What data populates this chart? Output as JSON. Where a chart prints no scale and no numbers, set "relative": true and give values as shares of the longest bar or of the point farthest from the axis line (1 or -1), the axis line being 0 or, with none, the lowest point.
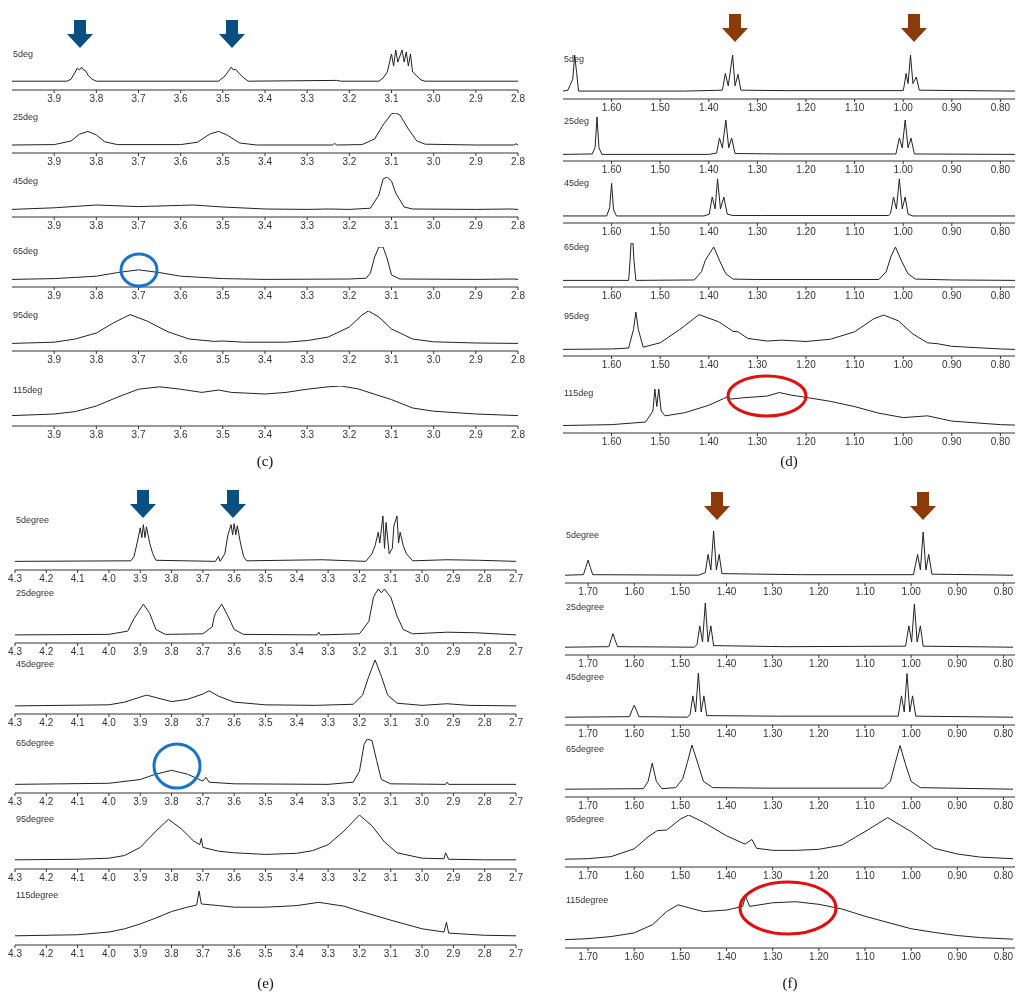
{
  "chart_data": [
    {
      "type": "line",
      "title": "5deg",
      "relative": true,
      "color": "#222222",
      "xlim": [
        4.0,
        2.8
      ],
      "xticks": [
        3.9,
        3.8,
        3.7,
        3.6,
        3.5,
        3.4,
        3.3,
        3.2,
        3.1,
        {
          "value": 3.0,
          "label": "3.0"
        },
        2.9,
        2.8
      ],
      "x": [
        4.0,
        3.87,
        3.86,
        3.85,
        3.845,
        3.84,
        3.835,
        3.83,
        3.825,
        3.82,
        3.81,
        3.8,
        3.51,
        3.495,
        3.485,
        3.48,
        3.475,
        3.47,
        3.46,
        3.45,
        3.44,
        3.23,
        3.22,
        3.13,
        3.12,
        3.11,
        3.1,
        3.095,
        3.09,
        3.085,
        3.075,
        3.07,
        3.065,
        3.06,
        3.055,
        3.05,
        3.04,
        3.03,
        3.02,
        2.8
      ],
      "values": [
        0.22,
        0.22,
        0.27,
        0.45,
        0.55,
        0.5,
        0.57,
        0.5,
        0.48,
        0.37,
        0.27,
        0.22,
        0.22,
        0.35,
        0.5,
        0.57,
        0.5,
        0.52,
        0.4,
        0.3,
        0.22,
        0.24,
        0.22,
        0.22,
        0.3,
        0.45,
        0.9,
        0.6,
        1.0,
        0.7,
        1.0,
        0.7,
        0.95,
        0.6,
        0.9,
        0.45,
        0.35,
        0.25,
        0.22,
        0.22
      ]
    },
    {
      "type": "line",
      "title": "25deg",
      "relative": true,
      "color": "#222222",
      "xlim": [
        4.0,
        2.8
      ],
      "xticks": [
        3.9,
        3.8,
        3.7,
        3.6,
        3.5,
        3.4,
        3.3,
        3.2,
        3.1,
        {
          "value": 3.0,
          "label": "3.0"
        },
        2.9,
        2.8
      ],
      "x": [
        4.0,
        3.9,
        3.86,
        3.84,
        3.82,
        3.8,
        3.78,
        3.75,
        3.6,
        3.56,
        3.53,
        3.51,
        3.49,
        3.46,
        3.42,
        3.24,
        3.235,
        3.23,
        3.17,
        3.14,
        3.12,
        3.1,
        3.09,
        3.08,
        3.06,
        3.04,
        3.02,
        2.9,
        2.81,
        2.805,
        2.8
      ],
      "values": [
        0.2,
        0.21,
        0.3,
        0.47,
        0.54,
        0.45,
        0.28,
        0.21,
        0.21,
        0.27,
        0.48,
        0.54,
        0.45,
        0.25,
        0.2,
        0.2,
        0.24,
        0.2,
        0.21,
        0.35,
        0.7,
        0.98,
        1.0,
        0.95,
        0.6,
        0.3,
        0.22,
        0.2,
        0.2,
        0.23,
        0.2
      ]
    },
    {
      "type": "line",
      "title": "45deg",
      "relative": true,
      "color": "#222222",
      "xlim": [
        4.0,
        2.8
      ],
      "xticks": [
        3.9,
        3.8,
        3.7,
        3.6,
        3.5,
        3.4,
        3.3,
        3.2,
        3.1,
        {
          "value": 3.0,
          "label": "3.0"
        },
        2.9,
        2.8
      ],
      "x": [
        4.0,
        3.9,
        3.8,
        3.7,
        3.6,
        3.57,
        3.5,
        3.4,
        3.3,
        3.25,
        3.2,
        3.15,
        3.13,
        3.12,
        3.11,
        3.1,
        3.09,
        3.07,
        3.05,
        2.9,
        2.82,
        2.8
      ],
      "values": [
        0.19,
        0.23,
        0.3,
        0.26,
        0.29,
        0.3,
        0.25,
        0.2,
        0.19,
        0.2,
        0.19,
        0.22,
        0.55,
        0.95,
        1.0,
        0.9,
        0.6,
        0.25,
        0.2,
        0.19,
        0.2,
        0.19
      ]
    },
    {
      "type": "line",
      "title": "65deg",
      "relative": true,
      "color": "#222222",
      "xlim": [
        4.0,
        2.8
      ],
      "xticks": [
        3.9,
        3.8,
        3.7,
        3.6,
        3.5,
        3.4,
        3.3,
        3.2,
        3.1,
        {
          "value": 3.0,
          "label": "3.0"
        },
        2.9,
        2.8
      ],
      "x": [
        4.0,
        3.9,
        3.8,
        3.75,
        3.7,
        3.65,
        3.6,
        3.5,
        3.4,
        3.2,
        3.16,
        3.15,
        3.14,
        3.13,
        3.12,
        3.11,
        3.1,
        3.08,
        2.9,
        2.81,
        2.8
      ],
      "values": [
        0.19,
        0.21,
        0.27,
        0.36,
        0.43,
        0.36,
        0.27,
        0.21,
        0.19,
        0.2,
        0.22,
        0.35,
        0.75,
        1.0,
        1.0,
        0.7,
        0.3,
        0.2,
        0.19,
        0.2,
        0.19
      ]
    },
    {
      "type": "line",
      "title": "95deg",
      "relative": true,
      "color": "#222222",
      "xlim": [
        4.0,
        2.8
      ],
      "xticks": [
        3.9,
        3.8,
        3.7,
        3.6,
        3.5,
        3.4,
        3.3,
        3.2,
        3.1,
        {
          "value": 3.0,
          "label": "3.0"
        },
        2.9,
        2.8
      ],
      "x": [
        4.0,
        3.9,
        3.85,
        3.8,
        3.76,
        3.72,
        3.68,
        3.63,
        3.58,
        3.52,
        3.5,
        3.45,
        3.35,
        3.3,
        3.25,
        3.2,
        3.17,
        3.155,
        3.13,
        3.1,
        3.05,
        3.0,
        2.9,
        2.8
      ],
      "values": [
        0.19,
        0.22,
        0.3,
        0.45,
        0.7,
        0.91,
        0.75,
        0.48,
        0.3,
        0.24,
        0.25,
        0.22,
        0.22,
        0.26,
        0.35,
        0.6,
        0.9,
        1.0,
        0.85,
        0.55,
        0.3,
        0.23,
        0.2,
        0.19
      ]
    },
    {
      "type": "line",
      "title": "115deg",
      "relative": true,
      "color": "#222222",
      "xlim": [
        4.0,
        2.8
      ],
      "xticks": [
        3.9,
        3.8,
        3.7,
        3.6,
        3.5,
        3.4,
        3.3,
        3.2,
        3.1,
        {
          "value": 3.0,
          "label": "3.0"
        },
        2.9,
        2.8
      ],
      "annotations": [
        "(c)"
      ],
      "x": [
        4.0,
        3.9,
        3.85,
        3.8,
        3.75,
        3.7,
        3.65,
        3.6,
        3.55,
        3.51,
        3.48,
        3.4,
        3.35,
        3.3,
        3.25,
        3.22,
        3.18,
        3.1,
        3.05,
        3.0,
        2.9,
        2.8
      ],
      "values": [
        0.26,
        0.3,
        0.36,
        0.5,
        0.72,
        0.92,
        0.98,
        0.92,
        0.84,
        0.9,
        0.84,
        0.8,
        0.84,
        0.92,
        0.98,
        1.0,
        0.93,
        0.66,
        0.45,
        0.37,
        0.3,
        0.26
      ]
    },
    {
      "type": "line",
      "title": "5deg",
      "relative": true,
      "color": "#222222",
      "xlim": [
        1.7,
        0.77
      ],
      "xticks": [
        {
          "value": 1.6,
          "label": "1.60"
        },
        {
          "value": 1.5,
          "label": "1.50"
        },
        {
          "value": 1.4,
          "label": "1.40"
        },
        {
          "value": 1.3,
          "label": "1.30"
        },
        {
          "value": 1.2,
          "label": "1.20"
        },
        {
          "value": 1.1,
          "label": "1.10"
        },
        {
          "value": 1.0,
          "label": "1.00"
        },
        {
          "value": 0.9,
          "label": "0.90"
        },
        {
          "value": 0.8,
          "label": "0.80"
        }
      ],
      "x": [
        1.7,
        1.69,
        1.686,
        1.68,
        1.676,
        1.672,
        1.668,
        1.45,
        1.372,
        1.366,
        1.36,
        1.351,
        1.346,
        1.34,
        1.334,
        1.24,
        1.0,
        0.998,
        0.994,
        0.99,
        0.985,
        0.98,
        0.973,
        0.967,
        0.77
      ],
      "values": [
        0.18,
        0.2,
        0.3,
        0.45,
        1.0,
        0.6,
        0.18,
        0.18,
        0.2,
        0.58,
        0.3,
        1.0,
        0.3,
        0.56,
        0.2,
        0.19,
        0.19,
        0.3,
        0.58,
        0.35,
        1.0,
        0.35,
        0.5,
        0.2,
        0.18
      ]
    },
    {
      "type": "line",
      "title": "25deg",
      "relative": true,
      "color": "#222222",
      "xlim": [
        1.7,
        0.77
      ],
      "xticks": [
        {
          "value": 1.6,
          "label": "1.60"
        },
        {
          "value": 1.5,
          "label": "1.50"
        },
        {
          "value": 1.4,
          "label": "1.40"
        },
        {
          "value": 1.3,
          "label": "1.30"
        },
        {
          "value": 1.2,
          "label": "1.20"
        },
        {
          "value": 1.1,
          "label": "1.10"
        },
        {
          "value": 1.0,
          "label": "1.00"
        },
        {
          "value": 0.9,
          "label": "0.90"
        },
        {
          "value": 0.8,
          "label": "0.80"
        }
      ],
      "x": [
        1.7,
        1.64,
        1.634,
        1.63,
        1.626,
        1.62,
        1.4,
        1.384,
        1.378,
        1.372,
        1.365,
        1.359,
        1.353,
        1.346,
        1.26,
        1.015,
        1.008,
        1.002,
        0.996,
        0.99,
        0.984,
        0.977,
        0.77
      ],
      "values": [
        0.15,
        0.16,
        0.3,
        1.0,
        0.3,
        0.15,
        0.15,
        0.18,
        0.52,
        0.3,
        0.93,
        0.3,
        0.52,
        0.17,
        0.16,
        0.16,
        0.52,
        0.3,
        0.93,
        0.3,
        0.52,
        0.16,
        0.15
      ]
    },
    {
      "type": "line",
      "title": "45deg",
      "relative": true,
      "color": "#222222",
      "xlim": [
        1.7,
        0.77
      ],
      "xticks": [
        {
          "value": 1.6,
          "label": "1.60"
        },
        {
          "value": 1.5,
          "label": "1.50"
        },
        {
          "value": 1.4,
          "label": "1.40"
        },
        {
          "value": 1.3,
          "label": "1.30"
        },
        {
          "value": 1.2,
          "label": "1.20"
        },
        {
          "value": 1.1,
          "label": "1.10"
        },
        {
          "value": 1.0,
          "label": "1.00"
        },
        {
          "value": 0.9,
          "label": "0.90"
        },
        {
          "value": 0.8,
          "label": "0.80"
        }
      ],
      "x": [
        1.7,
        1.61,
        1.604,
        1.6,
        1.596,
        1.59,
        1.41,
        1.399,
        1.393,
        1.387,
        1.382,
        1.376,
        1.369,
        1.362,
        1.35,
        1.29,
        1.03,
        1.026,
        1.02,
        1.014,
        1.008,
        1.002,
        0.996,
        0.99,
        0.98,
        0.77
      ],
      "values": [
        0.16,
        0.16,
        0.35,
        0.9,
        0.3,
        0.16,
        0.16,
        0.2,
        0.59,
        0.32,
        1.0,
        0.32,
        0.59,
        0.2,
        0.17,
        0.17,
        0.17,
        0.22,
        0.59,
        0.32,
        1.0,
        0.32,
        0.59,
        0.2,
        0.16,
        0.16
      ]
    },
    {
      "type": "line",
      "title": "65deg",
      "relative": true,
      "color": "#222222",
      "xlim": [
        1.7,
        0.77
      ],
      "xticks": [
        {
          "value": 1.6,
          "label": "1.60"
        },
        {
          "value": 1.5,
          "label": "1.50"
        },
        {
          "value": 1.4,
          "label": "1.40"
        },
        {
          "value": 1.3,
          "label": "1.30"
        },
        {
          "value": 1.2,
          "label": "1.20"
        },
        {
          "value": 1.1,
          "label": "1.10"
        },
        {
          "value": 1.0,
          "label": "1.00"
        },
        {
          "value": 0.9,
          "label": "0.90"
        },
        {
          "value": 0.8,
          "label": "0.80"
        }
      ],
      "x": [
        1.7,
        1.565,
        1.562,
        1.56,
        1.556,
        1.554,
        1.55,
        1.43,
        1.415,
        1.407,
        1.39,
        1.377,
        1.365,
        1.35,
        1.3,
        1.05,
        1.035,
        1.025,
        1.016,
        1.003,
        0.99,
        0.975,
        0.9,
        0.77
      ],
      "values": [
        0.15,
        0.15,
        0.6,
        1.0,
        1.0,
        0.6,
        0.15,
        0.16,
        0.35,
        0.61,
        0.91,
        0.58,
        0.3,
        0.18,
        0.17,
        0.17,
        0.35,
        0.7,
        0.91,
        0.58,
        0.3,
        0.18,
        0.16,
        0.15
      ]
    },
    {
      "type": "line",
      "title": "95deg",
      "relative": true,
      "color": "#222222",
      "xlim": [
        1.7,
        0.77
      ],
      "xticks": [
        {
          "value": 1.6,
          "label": "1.60"
        },
        {
          "value": 1.5,
          "label": "1.50"
        },
        {
          "value": 1.4,
          "label": "1.40"
        },
        {
          "value": 1.3,
          "label": "1.30"
        },
        {
          "value": 1.2,
          "label": "1.20"
        },
        {
          "value": 1.1,
          "label": "1.10"
        },
        {
          "value": 1.0,
          "label": "1.00"
        },
        {
          "value": 0.9,
          "label": "0.90"
        },
        {
          "value": 0.8,
          "label": "0.80"
        }
      ],
      "x": [
        1.7,
        1.6,
        1.565,
        1.555,
        1.55,
        1.545,
        1.535,
        1.5,
        1.46,
        1.42,
        1.38,
        1.35,
        1.34,
        1.32,
        1.28,
        1.25,
        1.2,
        1.15,
        1.1,
        1.06,
        1.04,
        1.01,
        0.98,
        0.95,
        0.93,
        0.9,
        0.8,
        0.77
      ],
      "values": [
        0.15,
        0.16,
        0.18,
        0.6,
        1.0,
        0.6,
        0.2,
        0.3,
        0.6,
        0.94,
        0.78,
        0.56,
        0.55,
        0.4,
        0.34,
        0.36,
        0.33,
        0.38,
        0.55,
        0.85,
        0.93,
        0.8,
        0.5,
        0.3,
        0.28,
        0.22,
        0.16,
        0.15
      ]
    },
    {
      "type": "line",
      "title": "115deg",
      "relative": true,
      "color": "#222222",
      "xlim": [
        1.7,
        0.77
      ],
      "xticks": [
        {
          "value": 1.6,
          "label": "1.60"
        },
        {
          "value": 1.5,
          "label": "1.50"
        },
        {
          "value": 1.4,
          "label": "1.40"
        },
        {
          "value": 1.3,
          "label": "1.30"
        },
        {
          "value": 1.2,
          "label": "1.20"
        },
        {
          "value": 1.1,
          "label": "1.10"
        },
        {
          "value": 1.0,
          "label": "1.00"
        },
        {
          "value": 0.9,
          "label": "0.90"
        },
        {
          "value": 0.8,
          "label": "0.80"
        }
      ],
      "annotations": [
        "(d)"
      ],
      "x": [
        1.7,
        1.6,
        1.53,
        1.515,
        1.511,
        1.507,
        1.503,
        1.498,
        1.49,
        1.45,
        1.4,
        1.37,
        1.36,
        1.355,
        1.33,
        1.28,
        1.255,
        1.23,
        1.2,
        1.15,
        1.1,
        1.05,
        1.0,
        0.95,
        0.9,
        0.8,
        0.77
      ],
      "values": [
        0.17,
        0.19,
        0.25,
        0.5,
        1.0,
        0.6,
        1.0,
        0.5,
        0.39,
        0.46,
        0.63,
        0.78,
        0.83,
        0.77,
        0.8,
        0.84,
        0.92,
        0.86,
        0.81,
        0.72,
        0.6,
        0.45,
        0.35,
        0.39,
        0.27,
        0.19,
        0.18
      ]
    },
    {
      "type": "line",
      "title": "5degree",
      "relative": true,
      "color": "#222222",
      "xlim": [
        4.3,
        2.7
      ],
      "xticks": [
        4.3,
        4.2,
        4.1,
        {
          "value": 4.0,
          "label": "4.0"
        },
        3.9,
        3.8,
        3.7,
        3.6,
        3.5,
        3.4,
        3.3,
        3.2,
        3.1,
        {
          "value": 3.0,
          "label": "3.0"
        },
        2.9,
        2.8,
        2.7
      ],
      "x": [
        4.3,
        3.93,
        3.92,
        3.91,
        3.9,
        3.895,
        3.89,
        3.885,
        3.88,
        3.87,
        3.86,
        3.85,
        3.66,
        3.65,
        3.645,
        3.63,
        3.62,
        3.61,
        3.605,
        3.6,
        3.595,
        3.59,
        3.58,
        3.57,
        3.56,
        3.32,
        3.18,
        3.16,
        3.15,
        3.14,
        3.135,
        3.125,
        3.12,
        3.115,
        3.105,
        3.095,
        3.09,
        3.08,
        3.075,
        3.07,
        3.06,
        3.05,
        3.03,
        2.92,
        2.82,
        2.7
      ],
      "values": [
        0.16,
        0.17,
        0.25,
        0.5,
        0.78,
        0.6,
        0.84,
        0.6,
        0.8,
        0.5,
        0.3,
        0.18,
        0.16,
        0.25,
        0.16,
        0.3,
        0.65,
        0.84,
        0.65,
        0.86,
        0.65,
        0.82,
        0.5,
        0.25,
        0.17,
        0.19,
        0.16,
        0.3,
        0.45,
        0.7,
        0.5,
        1.0,
        0.4,
        0.88,
        0.3,
        0.4,
        0.82,
        1.0,
        0.5,
        0.7,
        0.45,
        0.3,
        0.17,
        0.19,
        0.18,
        0.16
      ]
    },
    {
      "type": "line",
      "title": "25degree",
      "relative": true,
      "color": "#222222",
      "xlim": [
        4.3,
        2.7
      ],
      "xticks": [
        4.3,
        4.2,
        4.1,
        {
          "value": 4.0,
          "label": "4.0"
        },
        3.9,
        3.8,
        3.7,
        3.6,
        3.5,
        3.4,
        3.3,
        3.2,
        3.1,
        {
          "value": 3.0,
          "label": "3.0"
        },
        2.9,
        2.8,
        2.7
      ],
      "x": [
        4.3,
        4.0,
        3.94,
        3.92,
        3.89,
        3.87,
        3.85,
        3.82,
        3.7,
        3.67,
        3.665,
        3.66,
        3.64,
        3.62,
        3.6,
        3.57,
        3.335,
        3.33,
        3.325,
        3.2,
        3.17,
        3.155,
        3.14,
        3.13,
        3.12,
        3.11,
        3.1,
        3.08,
        3.06,
        3.03,
        2.92,
        2.83,
        2.7
      ],
      "values": [
        0.15,
        0.16,
        0.22,
        0.45,
        0.72,
        0.55,
        0.25,
        0.16,
        0.17,
        0.3,
        0.46,
        0.55,
        0.72,
        0.5,
        0.25,
        0.16,
        0.15,
        0.2,
        0.15,
        0.17,
        0.4,
        0.85,
        1.0,
        0.93,
        1.0,
        0.92,
        0.85,
        0.5,
        0.25,
        0.17,
        0.2,
        0.19,
        0.15
      ]
    },
    {
      "type": "line",
      "title": "45degree",
      "relative": true,
      "color": "#222222",
      "xlim": [
        4.3,
        2.7
      ],
      "xticks": [
        4.3,
        4.2,
        4.1,
        {
          "value": 4.0,
          "label": "4.0"
        },
        3.9,
        3.8,
        3.7,
        3.6,
        3.5,
        3.4,
        3.3,
        3.2,
        3.1,
        {
          "value": 3.0,
          "label": "3.0"
        },
        2.9,
        2.8,
        2.7
      ],
      "x": [
        4.3,
        4.0,
        3.95,
        3.88,
        3.8,
        3.75,
        3.7,
        3.68,
        3.65,
        3.6,
        3.5,
        3.34,
        3.22,
        3.19,
        3.17,
        3.15,
        3.13,
        3.11,
        3.08,
        3.0,
        2.92,
        2.85,
        2.7
      ],
      "values": [
        0.15,
        0.17,
        0.22,
        0.35,
        0.23,
        0.27,
        0.37,
        0.43,
        0.33,
        0.22,
        0.17,
        0.16,
        0.18,
        0.35,
        0.7,
        1.0,
        0.7,
        0.35,
        0.2,
        0.16,
        0.19,
        0.16,
        0.15
      ]
    },
    {
      "type": "line",
      "title": "65degree",
      "relative": true,
      "color": "#222222",
      "xlim": [
        4.3,
        2.7
      ],
      "xticks": [
        4.3,
        4.2,
        4.1,
        {
          "value": 4.0,
          "label": "4.0"
        },
        3.9,
        3.8,
        3.7,
        3.6,
        3.5,
        3.4,
        3.3,
        3.2,
        3.1,
        {
          "value": 3.0,
          "label": "3.0"
        },
        2.9,
        2.8,
        2.7
      ],
      "x": [
        4.3,
        4.0,
        3.9,
        3.85,
        3.8,
        3.75,
        3.7,
        3.69,
        3.68,
        3.6,
        3.3,
        3.22,
        3.2,
        3.185,
        3.175,
        3.16,
        3.145,
        3.13,
        3.1,
        2.925,
        2.92,
        2.915,
        2.7
      ],
      "values": [
        0.16,
        0.18,
        0.25,
        0.35,
        0.42,
        0.35,
        0.22,
        0.29,
        0.2,
        0.17,
        0.16,
        0.2,
        0.4,
        0.9,
        1.0,
        0.97,
        0.6,
        0.25,
        0.17,
        0.16,
        0.2,
        0.16,
        0.16
      ]
    },
    {
      "type": "line",
      "title": "95degree",
      "relative": true,
      "color": "#222222",
      "xlim": [
        4.3,
        2.7
      ],
      "xticks": [
        4.3,
        4.2,
        4.1,
        {
          "value": 4.0,
          "label": "4.0"
        },
        3.9,
        3.8,
        3.7,
        3.6,
        3.5,
        3.4,
        3.3,
        3.2,
        3.1,
        {
          "value": 3.0,
          "label": "3.0"
        },
        2.9,
        2.8,
        2.7
      ],
      "x": [
        4.3,
        4.1,
        4.0,
        3.95,
        3.9,
        3.85,
        3.81,
        3.77,
        3.73,
        3.71,
        3.705,
        3.7,
        3.65,
        3.6,
        3.5,
        3.4,
        3.35,
        3.3,
        3.25,
        3.2,
        3.16,
        3.12,
        3.08,
        3.0,
        2.93,
        2.925,
        2.915,
        2.8,
        2.7
      ],
      "values": [
        0.17,
        0.18,
        0.2,
        0.25,
        0.4,
        0.7,
        0.92,
        0.75,
        0.52,
        0.45,
        0.57,
        0.4,
        0.33,
        0.3,
        0.27,
        0.29,
        0.34,
        0.45,
        0.7,
        1.0,
        0.8,
        0.5,
        0.3,
        0.2,
        0.19,
        0.3,
        0.18,
        0.17,
        0.17
      ]
    },
    {
      "type": "line",
      "title": "115degree",
      "relative": true,
      "color": "#222222",
      "xlim": [
        4.3,
        2.7
      ],
      "xticks": [
        4.3,
        4.2,
        4.1,
        {
          "value": 4.0,
          "label": "4.0"
        },
        3.9,
        3.8,
        3.7,
        3.6,
        3.5,
        3.4,
        3.3,
        3.2,
        3.1,
        {
          "value": 3.0,
          "label": "3.0"
        },
        2.9,
        2.8,
        2.7
      ],
      "annotations": [
        "(e)"
      ],
      "x": [
        4.3,
        4.1,
        4.0,
        3.95,
        3.9,
        3.85,
        3.8,
        3.75,
        3.72,
        3.712,
        3.705,
        3.65,
        3.6,
        3.5,
        3.4,
        3.33,
        3.25,
        3.2,
        3.1,
        3.0,
        2.93,
        2.922,
        2.915,
        2.8,
        2.7
      ],
      "values": [
        0.17,
        0.19,
        0.24,
        0.3,
        0.39,
        0.5,
        0.62,
        0.7,
        0.74,
        1.0,
        0.76,
        0.73,
        0.7,
        0.7,
        0.73,
        0.79,
        0.72,
        0.63,
        0.46,
        0.3,
        0.24,
        0.42,
        0.22,
        0.18,
        0.17
      ]
    },
    {
      "type": "line",
      "title": "5degree",
      "relative": true,
      "color": "#222222",
      "xlim": [
        1.75,
        0.775
      ],
      "xticks": [
        {
          "value": 1.7,
          "label": "1.70"
        },
        {
          "value": 1.6,
          "label": "1.60"
        },
        {
          "value": 1.5,
          "label": "1.50"
        },
        {
          "value": 1.4,
          "label": "1.40"
        },
        {
          "value": 1.3,
          "label": "1.30"
        },
        {
          "value": 1.2,
          "label": "1.20"
        },
        {
          "value": 1.1,
          "label": "1.10"
        },
        {
          "value": 1.0,
          "label": "1.00"
        },
        {
          "value": 0.9,
          "label": "0.90"
        },
        {
          "value": 0.8,
          "label": "0.80"
        }
      ],
      "x": [
        1.75,
        1.71,
        1.705,
        1.7,
        1.695,
        1.69,
        1.46,
        1.446,
        1.44,
        1.434,
        1.428,
        1.422,
        1.416,
        1.41,
        1.24,
        0.995,
        0.986,
        0.98,
        0.974,
        0.968,
        0.962,
        0.955,
        0.78
      ],
      "values": [
        0.15,
        0.16,
        0.3,
        0.44,
        0.3,
        0.16,
        0.15,
        0.2,
        0.55,
        0.25,
        1.0,
        0.25,
        0.55,
        0.18,
        0.16,
        0.16,
        0.55,
        0.25,
        0.98,
        0.25,
        0.55,
        0.17,
        0.15
      ]
    },
    {
      "type": "line",
      "title": "25degree",
      "relative": true,
      "color": "#222222",
      "xlim": [
        1.75,
        0.775
      ],
      "xticks": [
        {
          "value": 1.7,
          "label": "1.70"
        },
        {
          "value": 1.6,
          "label": "1.60"
        },
        {
          "value": 1.5,
          "label": "1.50"
        },
        {
          "value": 1.4,
          "label": "1.40"
        },
        {
          "value": 1.3,
          "label": "1.30"
        },
        {
          "value": 1.2,
          "label": "1.20"
        },
        {
          "value": 1.1,
          "label": "1.10"
        },
        {
          "value": 1.0,
          "label": "1.00"
        },
        {
          "value": 0.9,
          "label": "0.90"
        },
        {
          "value": 0.8,
          "label": "0.80"
        }
      ],
      "x": [
        1.75,
        1.655,
        1.65,
        1.646,
        1.642,
        1.636,
        1.47,
        1.464,
        1.458,
        1.452,
        1.446,
        1.44,
        1.434,
        1.428,
        1.27,
        1.012,
        1.005,
        0.999,
        0.993,
        0.987,
        0.98,
        0.974,
        0.78
      ],
      "values": [
        0.15,
        0.16,
        0.3,
        0.41,
        0.3,
        0.16,
        0.15,
        0.2,
        0.56,
        0.25,
        1.0,
        0.25,
        0.56,
        0.18,
        0.16,
        0.17,
        0.56,
        0.25,
        0.98,
        0.25,
        0.56,
        0.17,
        0.15
      ]
    },
    {
      "type": "line",
      "title": "45degree",
      "relative": true,
      "color": "#222222",
      "xlim": [
        1.75,
        0.775
      ],
      "xticks": [
        {
          "value": 1.7,
          "label": "1.70"
        },
        {
          "value": 1.6,
          "label": "1.60"
        },
        {
          "value": 1.5,
          "label": "1.50"
        },
        {
          "value": 1.4,
          "label": "1.40"
        },
        {
          "value": 1.3,
          "label": "1.30"
        },
        {
          "value": 1.2,
          "label": "1.20"
        },
        {
          "value": 1.1,
          "label": "1.10"
        },
        {
          "value": 1.0,
          "label": "1.00"
        },
        {
          "value": 0.9,
          "label": "0.90"
        },
        {
          "value": 0.8,
          "label": "0.80"
        }
      ],
      "x": [
        1.75,
        1.61,
        1.605,
        1.6,
        1.595,
        1.59,
        1.485,
        1.479,
        1.473,
        1.467,
        1.461,
        1.455,
        1.449,
        1.443,
        1.29,
        1.028,
        1.021,
        1.015,
        1.009,
        1.003,
        0.997,
        0.99,
        0.78
      ],
      "values": [
        0.15,
        0.16,
        0.28,
        0.38,
        0.28,
        0.16,
        0.15,
        0.2,
        0.56,
        0.25,
        1.0,
        0.25,
        0.56,
        0.18,
        0.17,
        0.17,
        0.56,
        0.25,
        0.99,
        0.25,
        0.56,
        0.17,
        0.15
      ]
    },
    {
      "type": "line",
      "title": "65degree",
      "relative": true,
      "color": "#222222",
      "xlim": [
        1.75,
        0.775
      ],
      "xticks": [
        {
          "value": 1.7,
          "label": "1.70"
        },
        {
          "value": 1.6,
          "label": "1.60"
        },
        {
          "value": 1.5,
          "label": "1.50"
        },
        {
          "value": 1.4,
          "label": "1.40"
        },
        {
          "value": 1.3,
          "label": "1.30"
        },
        {
          "value": 1.2,
          "label": "1.20"
        },
        {
          "value": 1.1,
          "label": "1.10"
        },
        {
          "value": 1.0,
          "label": "1.00"
        },
        {
          "value": 0.9,
          "label": "0.90"
        },
        {
          "value": 0.8,
          "label": "0.80"
        }
      ],
      "x": [
        1.75,
        1.58,
        1.57,
        1.561,
        1.552,
        1.54,
        1.51,
        1.495,
        1.485,
        1.475,
        1.462,
        1.45,
        1.43,
        1.31,
        1.06,
        1.045,
        1.035,
        1.024,
        1.012,
        1.0,
        0.98,
        0.78
      ],
      "values": [
        0.15,
        0.16,
        0.3,
        0.65,
        0.3,
        0.16,
        0.18,
        0.35,
        0.66,
        1.0,
        0.64,
        0.3,
        0.18,
        0.17,
        0.17,
        0.3,
        0.64,
        0.99,
        0.62,
        0.3,
        0.18,
        0.15
      ]
    },
    {
      "type": "line",
      "title": "95degree",
      "relative": true,
      "color": "#222222",
      "xlim": [
        1.75,
        0.775
      ],
      "xticks": [
        {
          "value": 1.7,
          "label": "1.70"
        },
        {
          "value": 1.6,
          "label": "1.60"
        },
        {
          "value": 1.5,
          "label": "1.50"
        },
        {
          "value": 1.4,
          "label": "1.40"
        },
        {
          "value": 1.3,
          "label": "1.30"
        },
        {
          "value": 1.2,
          "label": "1.20"
        },
        {
          "value": 1.1,
          "label": "1.10"
        },
        {
          "value": 1.0,
          "label": "1.00"
        },
        {
          "value": 0.9,
          "label": "0.90"
        },
        {
          "value": 0.8,
          "label": "0.80"
        }
      ],
      "x": [
        1.75,
        1.7,
        1.65,
        1.6,
        1.57,
        1.55,
        1.53,
        1.5,
        1.482,
        1.45,
        1.4,
        1.36,
        1.345,
        1.335,
        1.3,
        1.25,
        1.2,
        1.15,
        1.1,
        1.051,
        1.0,
        0.95,
        0.9,
        0.85,
        0.78
      ],
      "values": [
        0.15,
        0.16,
        0.2,
        0.35,
        0.58,
        0.7,
        0.71,
        0.92,
        1.0,
        0.86,
        0.6,
        0.44,
        0.53,
        0.36,
        0.32,
        0.32,
        0.34,
        0.42,
        0.68,
        0.95,
        0.68,
        0.36,
        0.25,
        0.19,
        0.16
      ]
    },
    {
      "type": "line",
      "title": "115degree",
      "relative": true,
      "color": "#222222",
      "xlim": [
        1.75,
        0.775
      ],
      "xticks": [
        {
          "value": 1.7,
          "label": "1.70"
        },
        {
          "value": 1.6,
          "label": "1.60"
        },
        {
          "value": 1.5,
          "label": "1.50"
        },
        {
          "value": 1.4,
          "label": "1.40"
        },
        {
          "value": 1.3,
          "label": "1.30"
        },
        {
          "value": 1.2,
          "label": "1.20"
        },
        {
          "value": 1.1,
          "label": "1.10"
        },
        {
          "value": 1.0,
          "label": "1.00"
        },
        {
          "value": 0.9,
          "label": "0.90"
        },
        {
          "value": 0.8,
          "label": "0.80"
        }
      ],
      "annotations": [
        "(f)"
      ],
      "x": [
        1.75,
        1.7,
        1.65,
        1.6,
        1.56,
        1.53,
        1.505,
        1.48,
        1.45,
        1.4,
        1.365,
        1.359,
        1.35,
        1.3,
        1.25,
        1.2,
        1.15,
        1.1,
        1.05,
        1.0,
        0.95,
        0.9,
        0.85,
        0.78
      ],
      "values": [
        0.16,
        0.18,
        0.22,
        0.29,
        0.45,
        0.7,
        0.83,
        0.77,
        0.7,
        0.73,
        0.8,
        1.0,
        0.8,
        0.87,
        0.89,
        0.84,
        0.75,
        0.61,
        0.49,
        0.37,
        0.3,
        0.24,
        0.2,
        0.17
      ]
    }
  ]
}
